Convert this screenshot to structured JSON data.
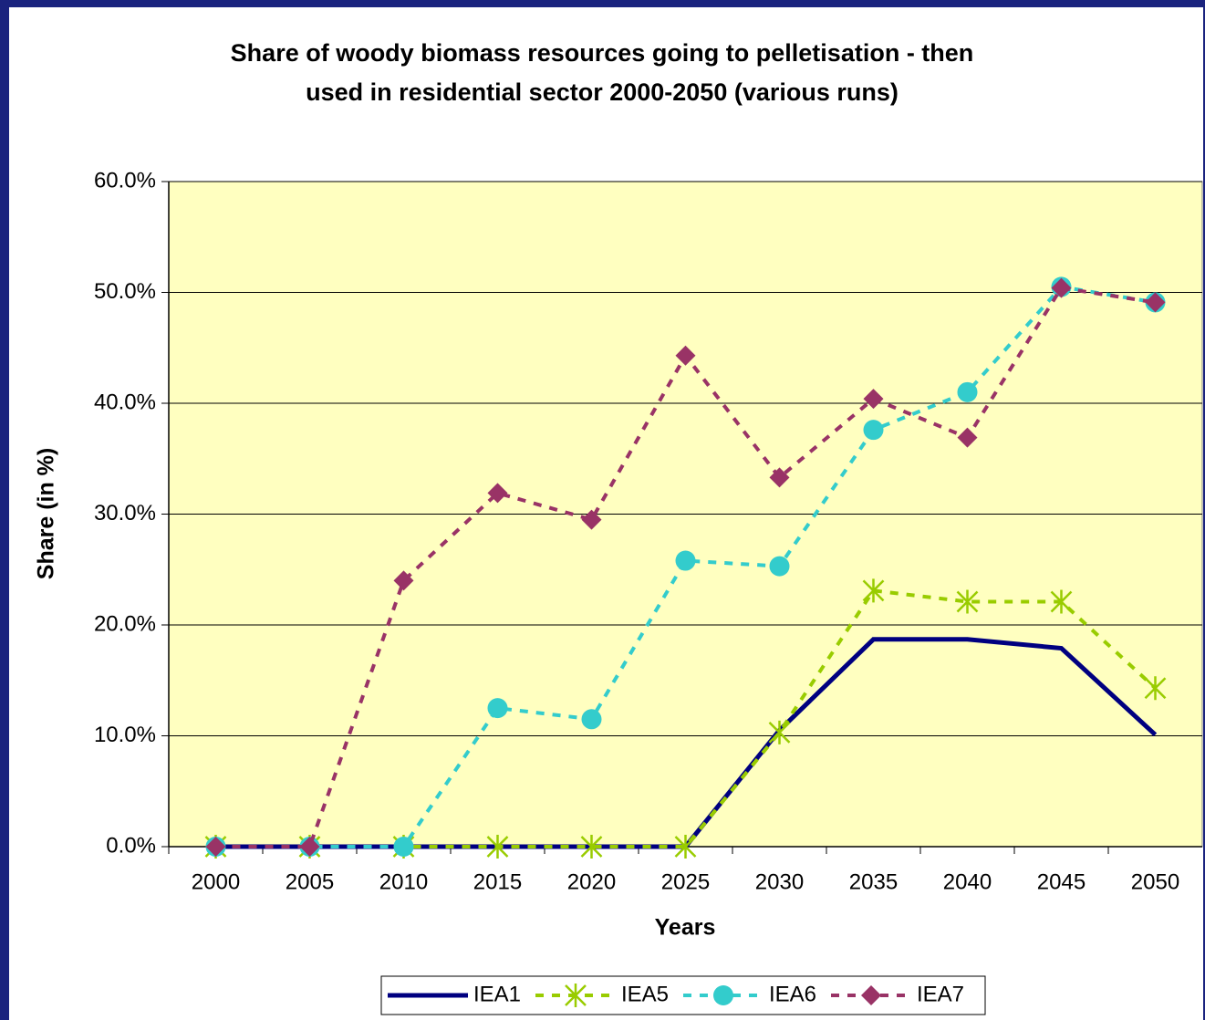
{
  "chart_data": {
    "type": "line",
    "title": [
      "Share of woody biomass resources going to pelletisation - then",
      "used in residential sector 2000-2050 (various runs)"
    ],
    "x_label": "Years",
    "y_label": "Share (in %)",
    "categories": [
      "2000",
      "2005",
      "2010",
      "2015",
      "2020",
      "2025",
      "2030",
      "2035",
      "2040",
      "2045",
      "2050"
    ],
    "ylim": [
      0,
      60
    ],
    "yticks": [
      {
        "value": 0,
        "label": "0.0%"
      },
      {
        "value": 10,
        "label": "10.0%"
      },
      {
        "value": 20,
        "label": "20.0%"
      },
      {
        "value": 30,
        "label": "30.0%"
      },
      {
        "value": 40,
        "label": "40.0%"
      },
      {
        "value": 50,
        "label": "50.0%"
      },
      {
        "value": 60,
        "label": "60.0%"
      }
    ],
    "grid": true,
    "legend": "bottom",
    "series": [
      {
        "name": "IEA1",
        "color": "#000080",
        "dash": false,
        "marker": "none",
        "values": [
          0,
          0,
          0,
          0,
          0,
          0,
          10.5,
          18.7,
          18.7,
          17.9,
          10.1
        ]
      },
      {
        "name": "IEA5",
        "color": "#99cc00",
        "dash": true,
        "marker": "asterisk",
        "values": [
          0,
          0,
          0,
          0,
          0,
          0,
          10.3,
          23.1,
          22.1,
          22.1,
          14.3
        ]
      },
      {
        "name": "IEA6",
        "color": "#33cccc",
        "dash": true,
        "marker": "circle",
        "values": [
          0,
          0,
          0,
          12.5,
          11.5,
          25.8,
          25.3,
          37.6,
          41.0,
          50.5,
          49.1
        ]
      },
      {
        "name": "IEA7",
        "color": "#993366",
        "dash": true,
        "marker": "diamond",
        "values": [
          0,
          0,
          24.0,
          31.9,
          29.5,
          44.3,
          33.3,
          40.4,
          36.9,
          50.4,
          49.1
        ]
      }
    ]
  }
}
